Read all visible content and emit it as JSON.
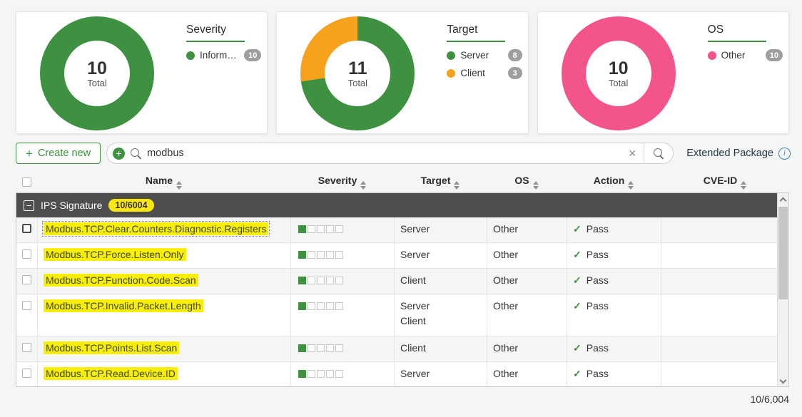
{
  "icons": {
    "check": "✓",
    "clear": "×",
    "plus": "+",
    "minus": "−",
    "info": "i"
  },
  "colors": {
    "green": "#3f9142",
    "orange": "#f6a21d",
    "pink": "#f2548b",
    "highlight": "#f8ee0a",
    "group_header_bg": "#4e4e4e",
    "badge_yellow": "#fbe70f",
    "badge_gray": "#9e9e9e"
  },
  "cards": [
    {
      "title": "Severity",
      "total": "10",
      "total_label": "Total",
      "legend": [
        {
          "label": "Informati...",
          "count": "10",
          "color": "#3f9142"
        }
      ],
      "donut": {
        "slices": [
          {
            "label": "Informational",
            "value": 10,
            "color": "#3f9142"
          }
        ]
      }
    },
    {
      "title": "Target",
      "total": "11",
      "total_label": "Total",
      "legend": [
        {
          "label": "Server",
          "count": "8",
          "color": "#3f9142"
        },
        {
          "label": "Client",
          "count": "3",
          "color": "#f6a21d"
        }
      ],
      "donut": {
        "slices": [
          {
            "label": "Server",
            "value": 8,
            "color": "#3f9142"
          },
          {
            "label": "Client",
            "value": 3,
            "color": "#f6a21d"
          }
        ]
      }
    },
    {
      "title": "OS",
      "total": "10",
      "total_label": "Total",
      "legend": [
        {
          "label": "Other",
          "count": "10",
          "color": "#f2548b"
        }
      ],
      "donut": {
        "slices": [
          {
            "label": "Other",
            "value": 10,
            "color": "#f2548b"
          }
        ]
      }
    }
  ],
  "toolbar": {
    "create_button": "Create new",
    "search_value": "modbus",
    "extended_package": "Extended Package"
  },
  "table": {
    "headers": [
      "Name",
      "Severity",
      "Target",
      "OS",
      "Action",
      "CVE-ID"
    ],
    "group": {
      "label": "IPS Signature",
      "badge": "10/6004"
    },
    "rows": [
      {
        "name": "Modbus.TCP.Clear.Counters.Diagnostic.Registers",
        "severity": 1,
        "target1": "Server",
        "target2": "",
        "os": "Other",
        "action": "Pass",
        "cve": ""
      },
      {
        "name": "Modbus.TCP.Force.Listen.Only",
        "severity": 1,
        "target1": "Server",
        "target2": "",
        "os": "Other",
        "action": "Pass",
        "cve": ""
      },
      {
        "name": "Modbus.TCP.Function.Code.Scan",
        "severity": 1,
        "target1": "Client",
        "target2": "",
        "os": "Other",
        "action": "Pass",
        "cve": ""
      },
      {
        "name": "Modbus.TCP.Invalid.Packet.Length",
        "severity": 1,
        "target1": "Server",
        "target2": "Client",
        "os": "Other",
        "action": "Pass",
        "cve": ""
      },
      {
        "name": "Modbus.TCP.Points.List.Scan",
        "severity": 1,
        "target1": "Client",
        "target2": "",
        "os": "Other",
        "action": "Pass",
        "cve": ""
      },
      {
        "name": "Modbus.TCP.Read.Device.ID",
        "severity": 1,
        "target1": "Server",
        "target2": "",
        "os": "Other",
        "action": "Pass",
        "cve": ""
      }
    ],
    "footer_count": "10/6,004"
  }
}
